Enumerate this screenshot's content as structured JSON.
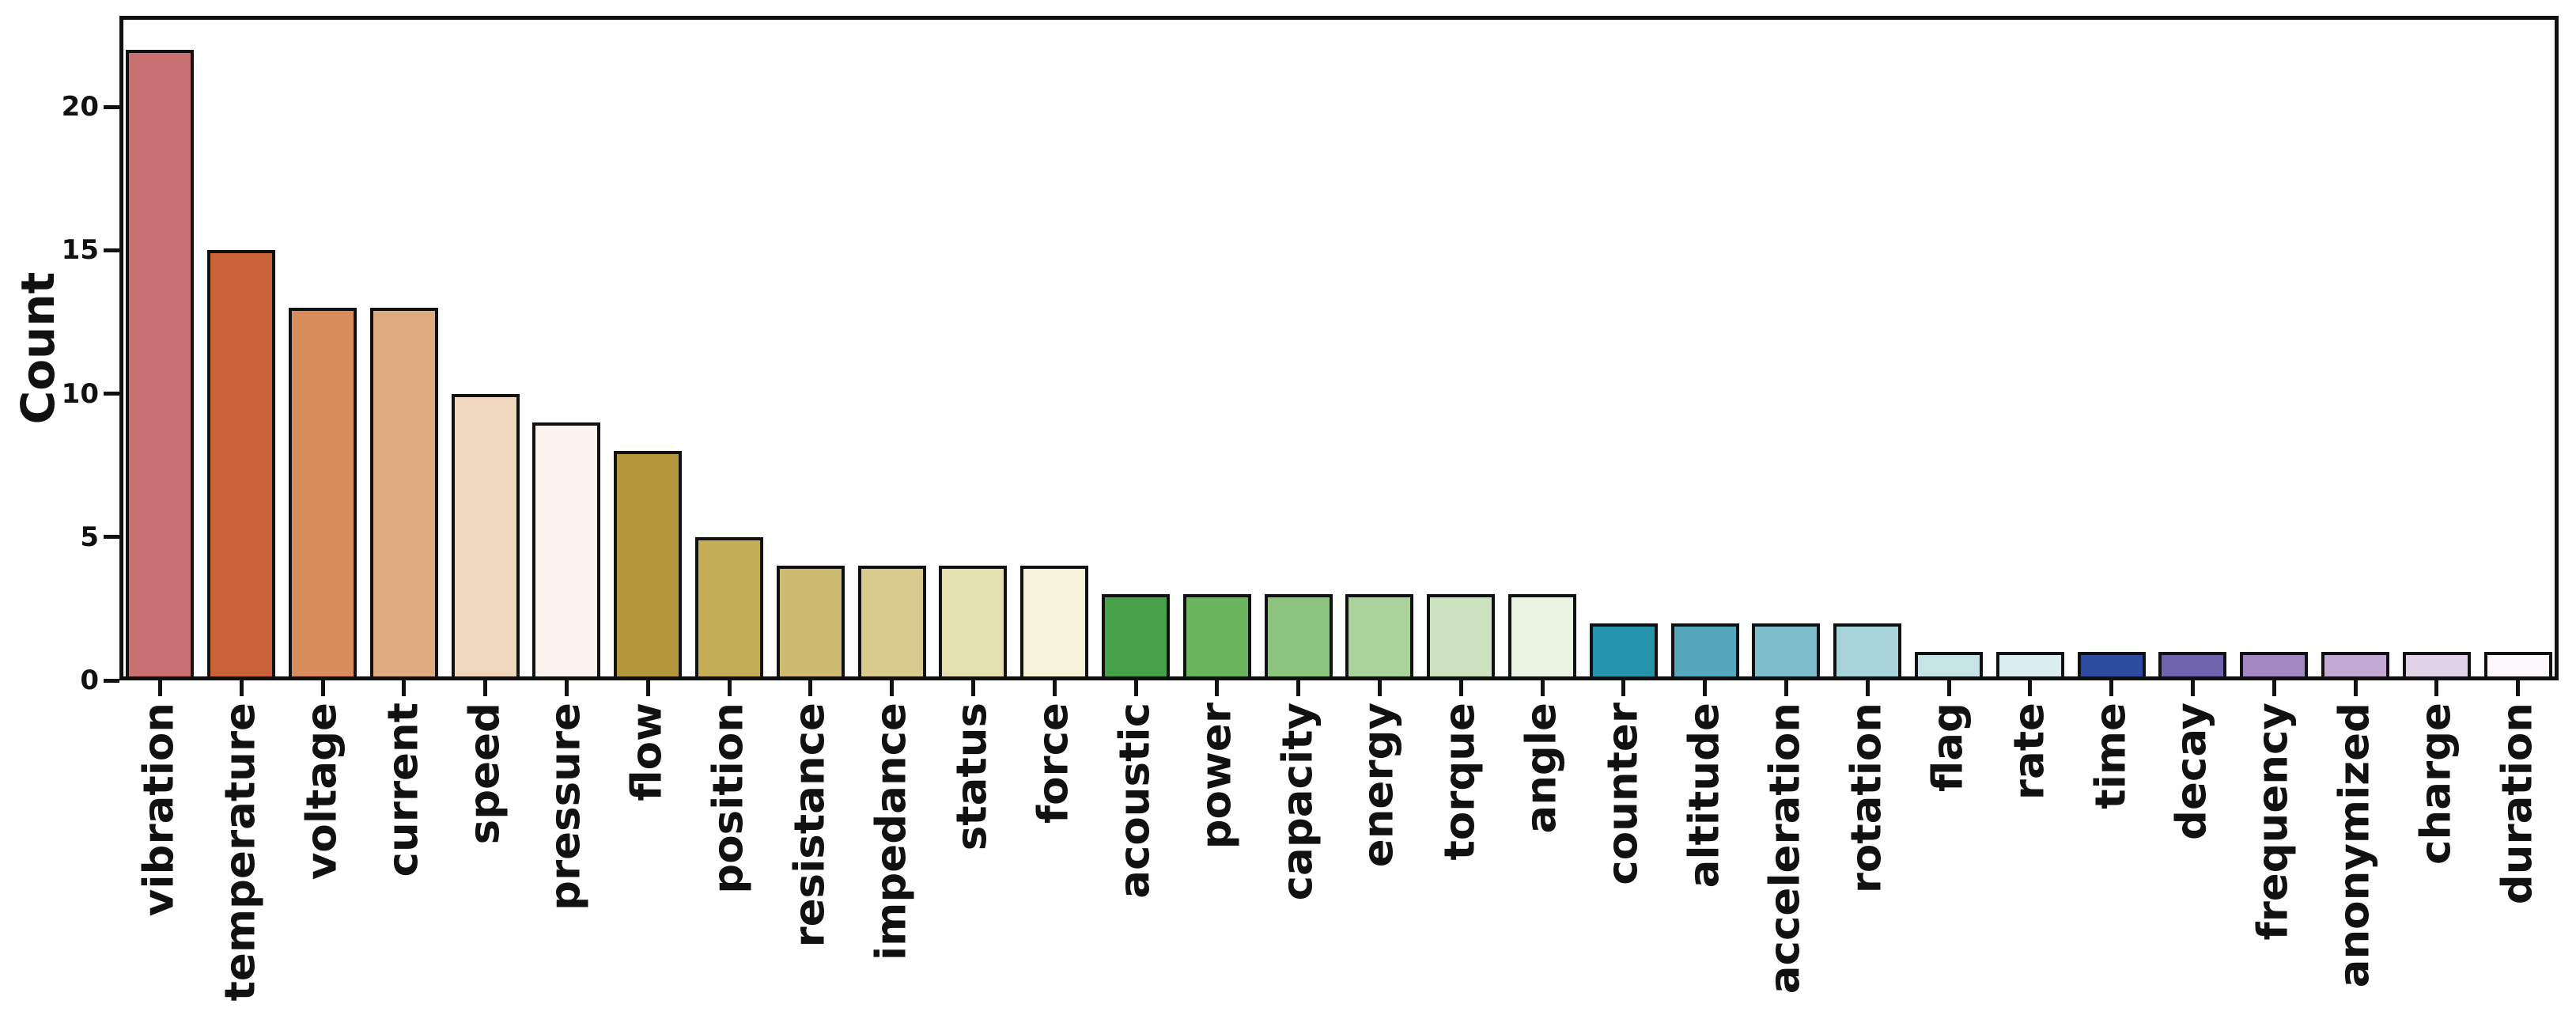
{
  "figure": {
    "background": "#ffffff",
    "text_color": "#111111"
  },
  "chart_data": {
    "type": "bar",
    "title": "",
    "xlabel": "",
    "ylabel": "Count",
    "categories": [
      "vibration",
      "temperature",
      "voltage",
      "current",
      "speed",
      "pressure",
      "flow",
      "position",
      "resistance",
      "impedance",
      "status",
      "force",
      "acoustic",
      "power",
      "capacity",
      "energy",
      "torque",
      "angle",
      "counter",
      "altitude",
      "acceleration",
      "rotation",
      "flag",
      "rate",
      "time",
      "decay",
      "frequency",
      "anonymized",
      "charge",
      "duration"
    ],
    "values": [
      22,
      15,
      13,
      13,
      10,
      9,
      8,
      5,
      4,
      4,
      4,
      4,
      3,
      3,
      3,
      3,
      3,
      3,
      2,
      2,
      2,
      2,
      1,
      1,
      1,
      1,
      1,
      1,
      1,
      1
    ],
    "bar_colors": [
      "#c87072",
      "#c96239",
      "#d88c5c",
      "#dfac82",
      "#eed7bd",
      "#faf4ec",
      "#b3973a",
      "#c3ad55",
      "#cdbb72",
      "#d8ca8c",
      "#e4dfae",
      "#f4f3d8",
      "#47a149",
      "#6ab45d",
      "#8cc47e",
      "#acd29b",
      "#cce2bf",
      "#eaf2e1",
      "#2493ac",
      "#56a7bb",
      "#7ebdcb",
      "#a6d2d9",
      "#c6e4e6",
      "#daeef0",
      "#2c4ba1",
      "#7164ae",
      "#a287c1",
      "#c3aad3",
      "#e2d2e7",
      "#fcf8fc"
    ],
    "bar_edge_color": "#111111",
    "yticks": [
      0,
      5,
      10,
      15,
      20
    ],
    "ylim": [
      0,
      23.1
    ],
    "grid": false,
    "legend": null,
    "x_tick_rotation": 90
  }
}
